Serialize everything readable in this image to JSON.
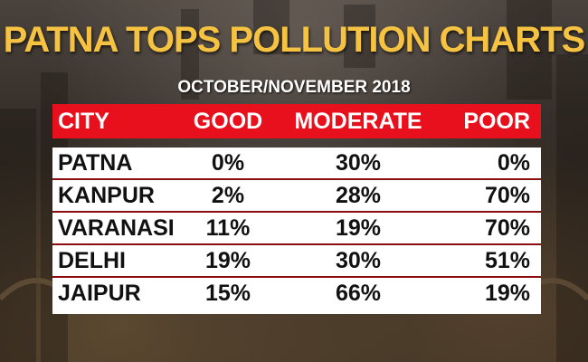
{
  "title": "PATNA TOPS POLLUTION CHARTS",
  "subtitle": "OCTOBER/NOVEMBER 2018",
  "chart_data": {
    "type": "table",
    "title": "PATNA TOPS POLLUTION CHARTS",
    "subtitle": "OCTOBER/NOVEMBER 2018",
    "columns": [
      "CITY",
      "GOOD",
      "MODERATE",
      "POOR"
    ],
    "rows": [
      [
        "PATNA",
        "0%",
        "30%",
        "0%"
      ],
      [
        "KANPUR",
        "2%",
        "28%",
        "70%"
      ],
      [
        "VARANASI",
        "11%",
        "19%",
        "70%"
      ],
      [
        "DELHI",
        "19%",
        "30%",
        "51%"
      ],
      [
        "JAIPUR",
        "15%",
        "66%",
        "19%"
      ]
    ]
  },
  "colors": {
    "title": "#f5c242",
    "header_bg": "#e8101c",
    "row_divider": "#8b0d0d"
  }
}
